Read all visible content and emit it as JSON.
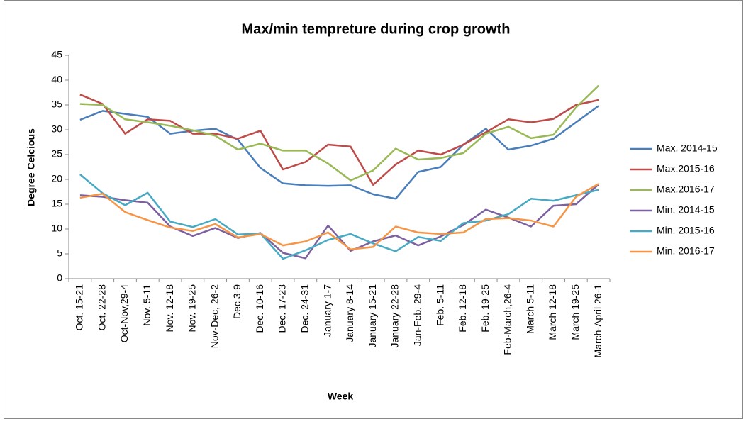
{
  "chart_data": {
    "type": "line",
    "title": "Max/min tempreture during crop growth",
    "x_label": "Week",
    "y_label": "Degree Celcious",
    "categories": [
      "Oct. 15-21",
      "Oct. 22-28",
      "Oct-Nov,29-4",
      "Nov. 5-11",
      "Nov. 12-18",
      "Nov. 19-25",
      "Nov-Dec, 26-2",
      "Dec 3-9",
      "Dec. 10-16",
      "Dec. 17-23",
      "Dec. 24-31",
      "January 1-7",
      "January 8-14",
      "January 15-21",
      "January 22-28",
      "Jan-Feb. 29-4",
      "Feb. 5-11",
      "Feb. 12-18",
      "Feb. 19-25",
      "Feb-March,26-4",
      "March 5-11",
      "March 12-18",
      "March 19-25",
      "March-April 26-1"
    ],
    "series": [
      {
        "name": "Max. 2014-15",
        "color": "#4a7ebb",
        "values": [
          32,
          33.8,
          33.2,
          32.6,
          29.2,
          29.8,
          30.2,
          28,
          22.3,
          19.2,
          18.8,
          18.7,
          18.8,
          17,
          16.1,
          21.5,
          22.5,
          27,
          30.2,
          26,
          26.8,
          28.2,
          31.5,
          34.8
        ]
      },
      {
        "name": "Max.2015-16",
        "color": "#be4b48",
        "values": [
          37.1,
          35.2,
          29.2,
          32.1,
          31.8,
          29.2,
          29.2,
          28.2,
          29.8,
          22,
          23.5,
          27,
          26.6,
          18.9,
          23,
          25.8,
          25,
          27,
          29.5,
          32.1,
          31.5,
          32.2,
          35,
          36
        ]
      },
      {
        "name": "Max.2016-17",
        "color": "#98b954",
        "values": [
          35.2,
          35,
          32.1,
          31.5,
          30.8,
          29.9,
          28.8,
          26,
          27.2,
          25.8,
          25.8,
          23.2,
          19.8,
          21.8,
          26.2,
          24,
          24.3,
          25.3,
          29.2,
          30.6,
          28.3,
          29,
          34.5,
          38.9
        ]
      },
      {
        "name": "Min. 2014-15",
        "color": "#7d60a0",
        "values": [
          16.8,
          16.5,
          15.8,
          15.3,
          10.5,
          8.6,
          10.2,
          8.2,
          9.2,
          5.2,
          4.1,
          10.7,
          5.6,
          7.5,
          8.7,
          6.7,
          8.5,
          10.8,
          13.9,
          12.3,
          10.5,
          14.7,
          15,
          19
        ]
      },
      {
        "name": "Min. 2015-16",
        "color": "#46aac5",
        "values": [
          21,
          17.2,
          14.8,
          17.3,
          11.5,
          10.4,
          12,
          8.9,
          9.1,
          4,
          5.7,
          7.8,
          9,
          7.1,
          5.5,
          8.4,
          7.6,
          11.2,
          11.7,
          13,
          16.1,
          15.7,
          16.8,
          17.9
        ]
      },
      {
        "name": "Min. 2016-17",
        "color": "#f69546",
        "values": [
          16.3,
          17.1,
          13.4,
          11.8,
          10.3,
          9.6,
          11,
          8.3,
          9,
          6.7,
          7.5,
          9.3,
          5.9,
          6.4,
          10.5,
          9.3,
          9,
          9.3,
          12,
          12.2,
          11.7,
          10.5,
          16.5,
          19.1
        ]
      }
    ],
    "ylim": [
      0,
      45
    ],
    "yticks": [
      0,
      5,
      10,
      15,
      20,
      25,
      30,
      35,
      40,
      45
    ],
    "legend": "right"
  }
}
